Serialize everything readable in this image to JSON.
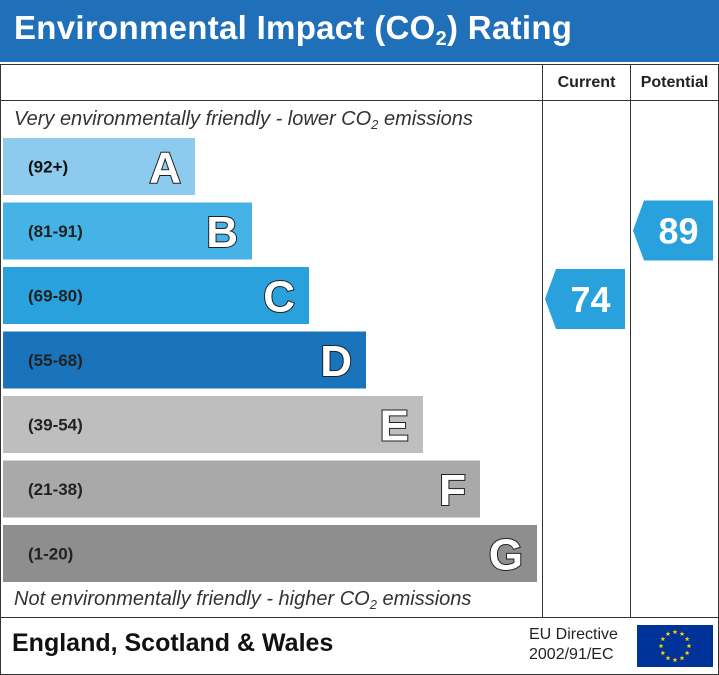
{
  "header": {
    "title_pre": "Environmental Impact (CO",
    "title_sub": "2",
    "title_post": ") Rating"
  },
  "columns": {
    "current": "Current",
    "potential": "Potential"
  },
  "top_note": {
    "pre": "Very environmentally friendly - lower CO",
    "sub": "2",
    "post": " emissions"
  },
  "bottom_note": {
    "pre": "Not environmentally friendly - higher CO",
    "sub": "2",
    "post": " emissions"
  },
  "footer": {
    "country": "England, Scotland & Wales",
    "directive_line1": "EU Directive",
    "directive_line2": "2002/91/EC"
  },
  "colors": {
    "header": "#1f6fb9",
    "A": "#8ccbee",
    "B": "#46b3e6",
    "C": "#29a1dc",
    "D": "#1a74bc",
    "E": "#bebebe",
    "F": "#a9a9a9",
    "G": "#8e8e8e",
    "arrow": "#29a1dc",
    "eu_flag": "#003399",
    "eu_stars": "#ffcc00"
  },
  "chart_data": {
    "type": "bar",
    "title": "Environmental Impact (CO2) Rating",
    "categories": [
      "A",
      "B",
      "C",
      "D",
      "E",
      "F",
      "G"
    ],
    "ranges": [
      "(92+)",
      "(81-91)",
      "(69-80)",
      "(55-68)",
      "(39-54)",
      "(21-38)",
      "(1-20)"
    ],
    "band_colors": [
      "#8ccbee",
      "#46b3e6",
      "#29a1dc",
      "#1a74bc",
      "#bebebe",
      "#a9a9a9",
      "#8e8e8e"
    ],
    "current": {
      "label": "Current",
      "value": 74,
      "band": "C"
    },
    "potential": {
      "label": "Potential",
      "value": 89,
      "band": "B"
    }
  }
}
